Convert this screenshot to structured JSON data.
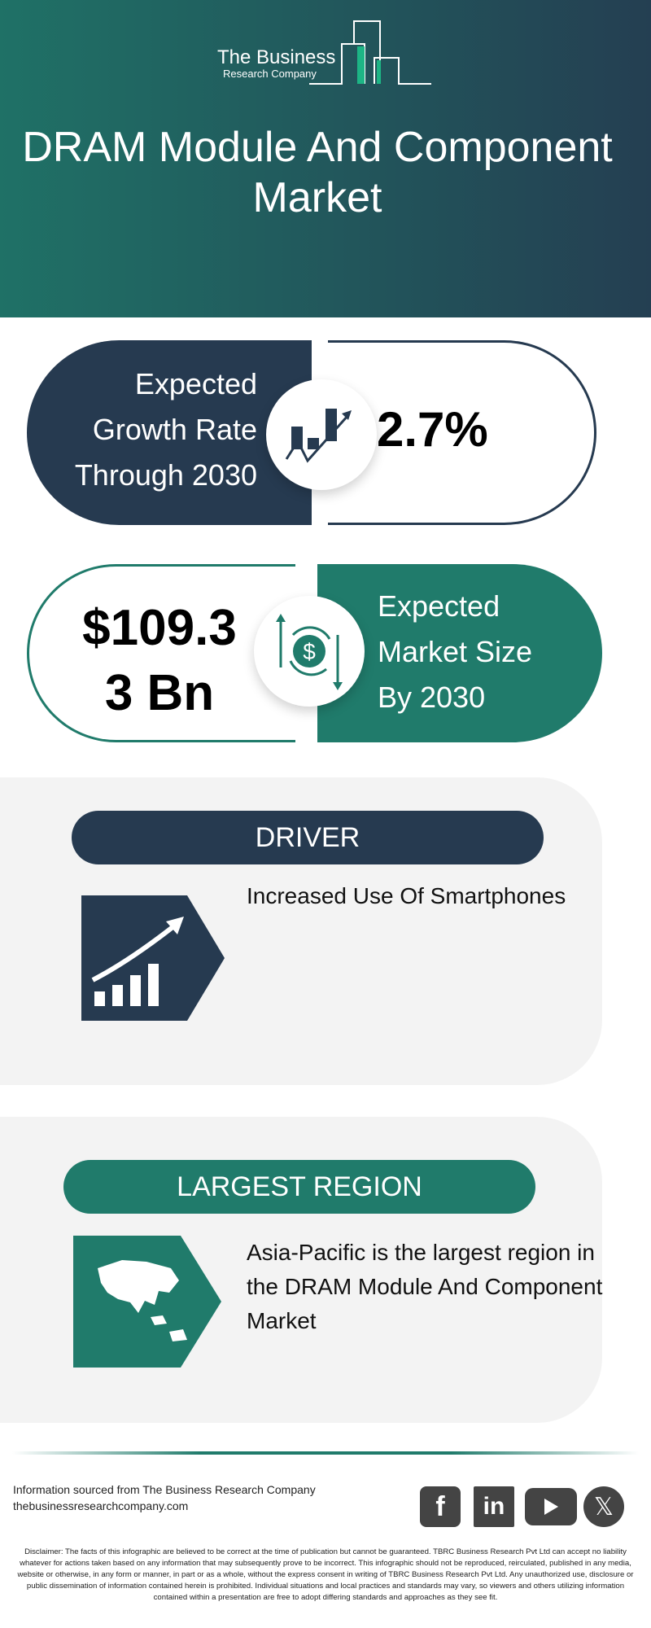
{
  "header": {
    "logo_line1": "The Business",
    "logo_line2": "Research Company",
    "title": "DRAM Module And Component Market"
  },
  "stats": [
    {
      "label_lines": [
        "Expected",
        "Growth Rate",
        "Through 2030"
      ],
      "value": "2.7%",
      "icon": "growth-chart-icon",
      "color": "#263a50"
    },
    {
      "label_lines": [
        "Expected",
        "Market Size",
        "By 2030"
      ],
      "value_lines": [
        "$109.3",
        "3 Bn"
      ],
      "icon": "dollar-cycle-icon",
      "color": "#207b6b"
    }
  ],
  "driver": {
    "heading": "DRIVER",
    "text": "Increased Use Of Smartphones",
    "icon": "rising-bars-arrow-icon"
  },
  "region": {
    "heading": "LARGEST REGION",
    "text": "Asia-Pacific is the largest region in the DRAM Module And Component Market",
    "icon": "asia-map-icon"
  },
  "footer": {
    "source": "Information sourced from The Business Research Company",
    "url": "thebusinessresearchcompany.com",
    "social": [
      "facebook",
      "linkedin",
      "youtube",
      "x"
    ],
    "disclaimer": "Disclaimer: The facts of this infographic are believed to be correct at the time of publication but cannot be guaranteed. TBRC Business Research Pvt Ltd can accept no liability whatever for actions taken based on any information that may subsequently prove to be incorrect. This infographic should not be reproduced, reirculated, published in any media, website or otherwise, in any form or manner, in part or as a whole, without the express consent in writing of TBRC Business Research Pvt Ltd. Any unauthorized use, disclosure or public dissemination of information contained herein is prohibited. Individual situations and local practices and standards may vary, so viewers and others utilizing information contained within a presentation are free to adopt differing standards and approaches as they see fit."
  },
  "colors": {
    "navy": "#263a50",
    "green": "#207b6b",
    "panel": "#f3f3f3"
  }
}
